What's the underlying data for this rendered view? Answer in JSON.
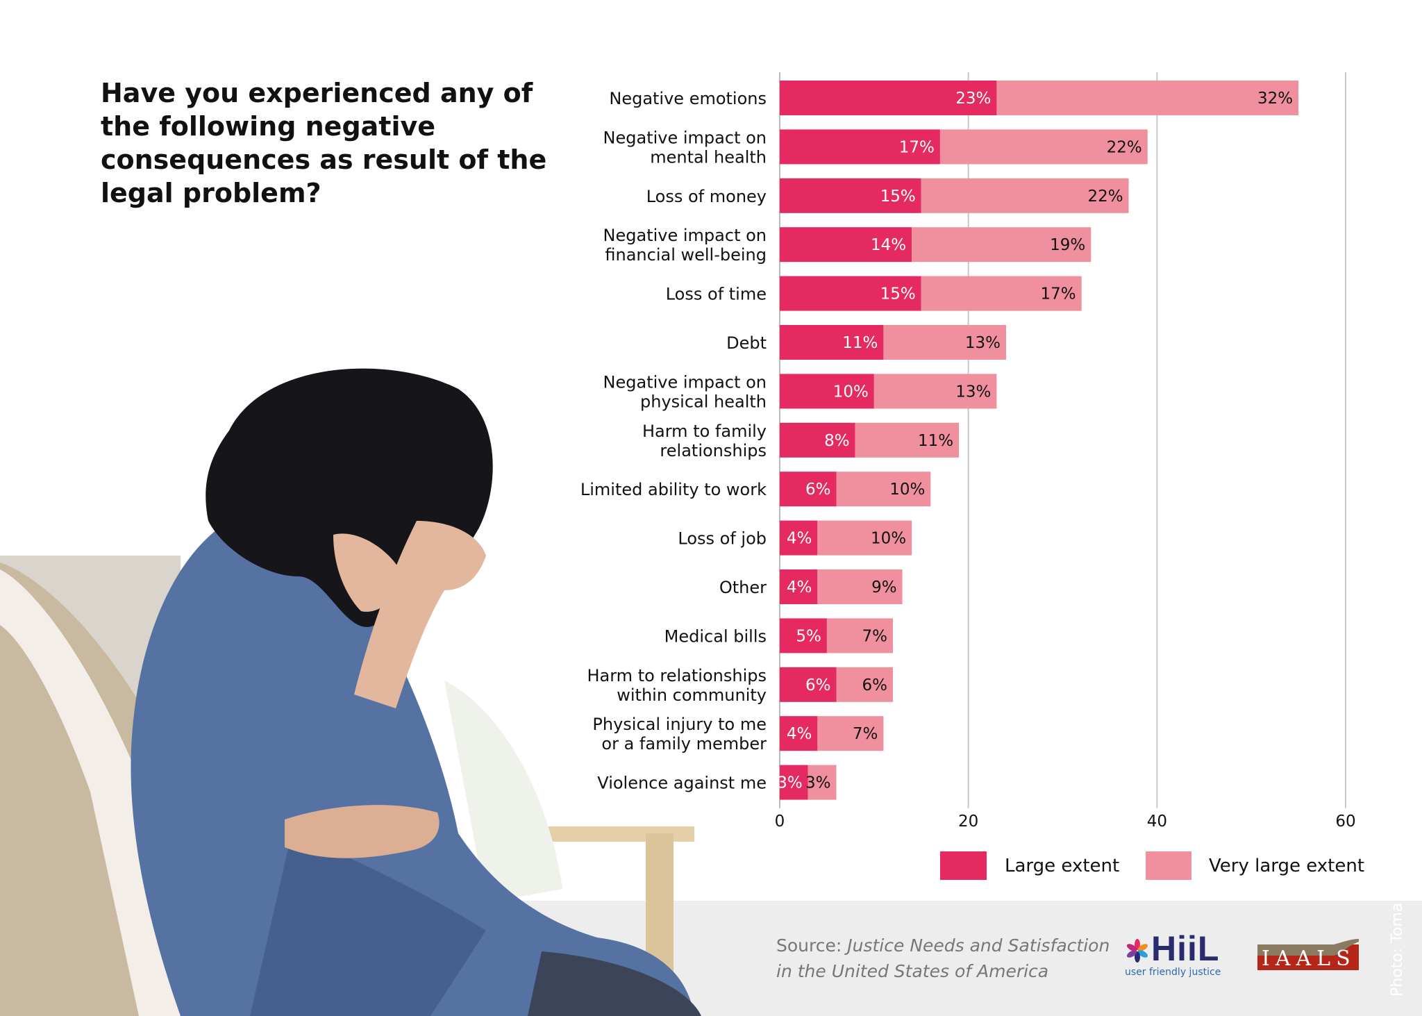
{
  "title": "Have you experienced any of the following negative consequences as result of the legal problem?",
  "chart_data": {
    "type": "bar",
    "orientation": "horizontal",
    "stacked": true,
    "categories": [
      "Negative emotions",
      "Negative impact on mental health",
      "Loss of money",
      "Negative impact on financial well-being",
      "Loss of time",
      "Debt",
      "Negative impact on physical health",
      "Harm to family relationships",
      "Limited ability to work",
      "Loss of job",
      "Other",
      "Medical bills",
      "Harm to relationships within community",
      "Physical injury to me or a family member",
      "Violence against me"
    ],
    "category_lines": [
      [
        "Negative emotions"
      ],
      [
        "Negative impact on",
        "mental health"
      ],
      [
        "Loss of money"
      ],
      [
        "Negative impact on",
        "financial well-being"
      ],
      [
        "Loss of time"
      ],
      [
        "Debt"
      ],
      [
        "Negative impact on",
        "physical health"
      ],
      [
        "Harm to family",
        "relationships"
      ],
      [
        "Limited ability to work"
      ],
      [
        "Loss of job"
      ],
      [
        "Other"
      ],
      [
        "Medical bills"
      ],
      [
        "Harm to relationships",
        "within community"
      ],
      [
        "Physical injury to me",
        "or a family member"
      ],
      [
        "Violence against me"
      ]
    ],
    "series": [
      {
        "name": "Large extent",
        "color": "#e52a61",
        "label_color": "#ffffff",
        "values": [
          23,
          17,
          15,
          14,
          15,
          11,
          10,
          8,
          6,
          4,
          4,
          5,
          6,
          4,
          3
        ]
      },
      {
        "name": "Very large extent",
        "color": "#f0909e",
        "label_color": "#111111",
        "values": [
          32,
          22,
          22,
          19,
          17,
          13,
          13,
          11,
          10,
          10,
          9,
          7,
          6,
          7,
          3
        ]
      }
    ],
    "value_suffix": "%",
    "xlim": [
      0,
      60
    ],
    "xticks": [
      0,
      20,
      40,
      60
    ],
    "grid": true,
    "legend": "bottom"
  },
  "source": {
    "prefix": "Source:",
    "line1": "Justice Needs and Satisfaction",
    "line2": "in the United States of America"
  },
  "logos": {
    "hiil": "HiiL",
    "hiil_tagline": "user friendly justice",
    "iaals": "IAALS"
  },
  "photo_credit": "Photo: Toma"
}
